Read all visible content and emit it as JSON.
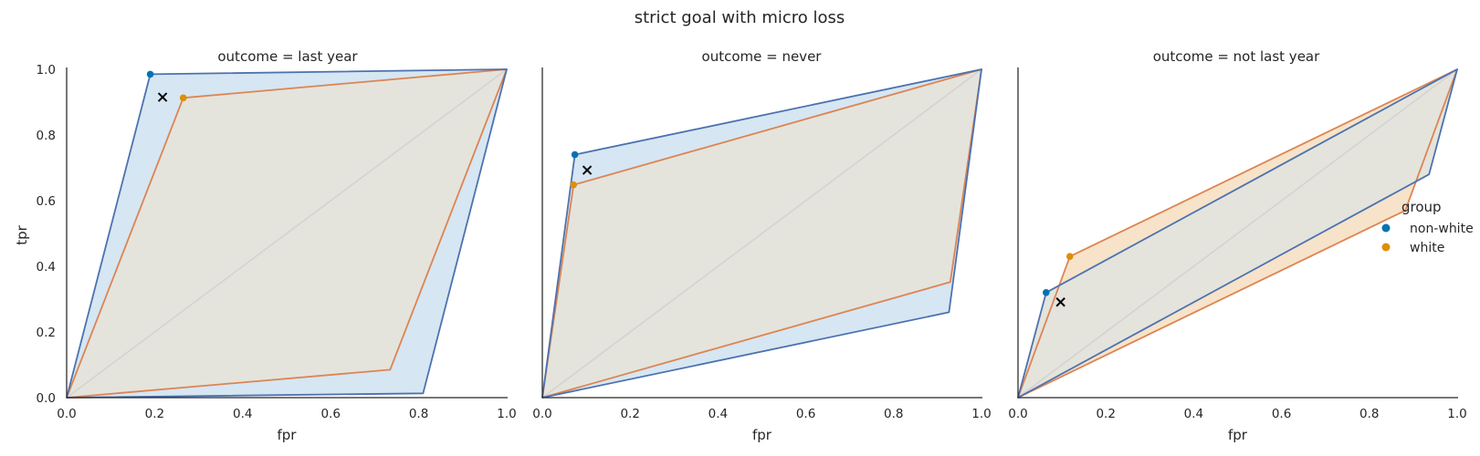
{
  "figure": {
    "title": "strict goal with micro loss"
  },
  "chart_data": {
    "type": "scatter",
    "title": "strict goal with micro loss",
    "xlabel": "fpr",
    "ylabel": "tpr",
    "xlim": [
      0,
      1
    ],
    "ylim": [
      0,
      1
    ],
    "xticks": [
      "0.0",
      "0.2",
      "0.4",
      "0.6",
      "0.8",
      "1.0"
    ],
    "yticks": [
      "0.0",
      "0.2",
      "0.4",
      "0.6",
      "0.8",
      "1.0"
    ],
    "grid": false,
    "legend": {
      "title": "group",
      "position": "right",
      "entries": [
        {
          "label": "non-white",
          "color": "#0173b2"
        },
        {
          "label": "white",
          "color": "#de8f05"
        }
      ]
    },
    "colors": {
      "non_white_point": "#0173b2",
      "white_point": "#de8f05",
      "non_white_line": "#4c72b0",
      "white_line": "#dd8452",
      "non_white_fill": "#d6e6f2",
      "white_fill": "#f7e3c9",
      "overlap_fill": "#e4e4dc",
      "diagonal": "#d3d3d3"
    },
    "panels": [
      {
        "title": "outcome = last year",
        "hulls": {
          "non_white": [
            [
              0,
              0
            ],
            [
              0.19,
              0.985
            ],
            [
              1,
              1
            ],
            [
              0.81,
              0.013
            ]
          ],
          "white": [
            [
              0,
              0
            ],
            [
              0.265,
              0.913
            ],
            [
              1,
              1
            ],
            [
              0.735,
              0.085
            ]
          ]
        },
        "points": {
          "non_white": [
            0.19,
            0.985
          ],
          "white": [
            0.265,
            0.913
          ],
          "target": [
            0.218,
            0.915
          ]
        },
        "overlap_fill_group": "white"
      },
      {
        "title": "outcome = never",
        "hulls": {
          "non_white": [
            [
              0,
              0
            ],
            [
              0.074,
              0.74
            ],
            [
              1,
              1
            ],
            [
              0.926,
              0.26
            ]
          ],
          "white": [
            [
              0,
              0
            ],
            [
              0.071,
              0.648
            ],
            [
              1,
              1
            ],
            [
              0.929,
              0.352
            ]
          ]
        },
        "points": {
          "non_white": [
            0.074,
            0.74
          ],
          "white": [
            0.071,
            0.648
          ],
          "target": [
            0.102,
            0.693
          ]
        },
        "overlap_fill_group": "white"
      },
      {
        "title": "outcome = not last year",
        "hulls": {
          "non_white": [
            [
              0,
              0
            ],
            [
              0.064,
              0.32
            ],
            [
              1,
              1
            ],
            [
              0.936,
              0.68
            ]
          ],
          "white": [
            [
              0,
              0
            ],
            [
              0.118,
              0.43
            ],
            [
              1,
              1
            ],
            [
              0.882,
              0.57
            ]
          ]
        },
        "points": {
          "non_white": [
            0.064,
            0.32
          ],
          "white": [
            0.118,
            0.43
          ],
          "target": [
            0.097,
            0.291
          ]
        },
        "overlap_fill_group": "non_white"
      }
    ]
  }
}
